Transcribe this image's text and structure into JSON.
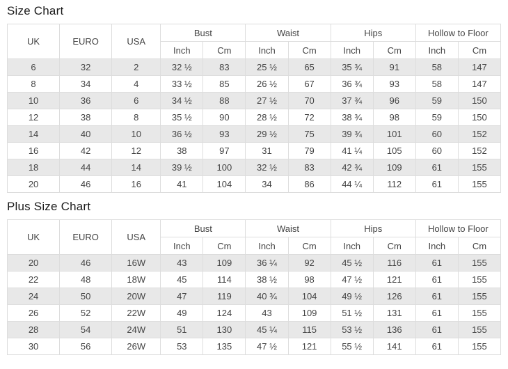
{
  "colors": {
    "row_stripe": "#e8e8e8",
    "cell_border": "#dddddd",
    "cell_text": "#444444",
    "title_text": "#1c1c1c",
    "background": "#ffffff"
  },
  "tables": [
    {
      "title": "Size Chart",
      "columns": [
        "UK",
        "EURO",
        "USA"
      ],
      "groups": [
        {
          "label": "Bust",
          "sub": [
            "Inch",
            "Cm"
          ]
        },
        {
          "label": "Waist",
          "sub": [
            "Inch",
            "Cm"
          ]
        },
        {
          "label": "Hips",
          "sub": [
            "Inch",
            "Cm"
          ]
        },
        {
          "label": "Hollow to Floor",
          "sub": [
            "Inch",
            "Cm"
          ]
        }
      ],
      "rows": [
        [
          "6",
          "32",
          "2",
          "32 ½",
          "83",
          "25 ½",
          "65",
          "35 ¾",
          "91",
          "58",
          "147"
        ],
        [
          "8",
          "34",
          "4",
          "33 ½",
          "85",
          "26 ½",
          "67",
          "36 ¾",
          "93",
          "58",
          "147"
        ],
        [
          "10",
          "36",
          "6",
          "34 ½",
          "88",
          "27 ½",
          "70",
          "37 ¾",
          "96",
          "59",
          "150"
        ],
        [
          "12",
          "38",
          "8",
          "35 ½",
          "90",
          "28 ½",
          "72",
          "38 ¾",
          "98",
          "59",
          "150"
        ],
        [
          "14",
          "40",
          "10",
          "36 ½",
          "93",
          "29 ½",
          "75",
          "39 ¾",
          "101",
          "60",
          "152"
        ],
        [
          "16",
          "42",
          "12",
          "38",
          "97",
          "31",
          "79",
          "41 ¼",
          "105",
          "60",
          "152"
        ],
        [
          "18",
          "44",
          "14",
          "39 ½",
          "100",
          "32 ½",
          "83",
          "42 ¾",
          "109",
          "61",
          "155"
        ],
        [
          "20",
          "46",
          "16",
          "41",
          "104",
          "34",
          "86",
          "44 ¼",
          "112",
          "61",
          "155"
        ]
      ]
    },
    {
      "title": "Plus Size Chart",
      "columns": [
        "UK",
        "EURO",
        "USA"
      ],
      "groups": [
        {
          "label": "Bust",
          "sub": [
            "Inch",
            "Cm"
          ]
        },
        {
          "label": "Waist",
          "sub": [
            "Inch",
            "Cm"
          ]
        },
        {
          "label": "Hips",
          "sub": [
            "Inch",
            "Cm"
          ]
        },
        {
          "label": "Hollow to Floor",
          "sub": [
            "Inch",
            "Cm"
          ]
        }
      ],
      "rows": [
        [
          "20",
          "46",
          "16W",
          "43",
          "109",
          "36 ¼",
          "92",
          "45 ½",
          "116",
          "61",
          "155"
        ],
        [
          "22",
          "48",
          "18W",
          "45",
          "114",
          "38 ½",
          "98",
          "47 ½",
          "121",
          "61",
          "155"
        ],
        [
          "24",
          "50",
          "20W",
          "47",
          "119",
          "40 ¾",
          "104",
          "49 ½",
          "126",
          "61",
          "155"
        ],
        [
          "26",
          "52",
          "22W",
          "49",
          "124",
          "43",
          "109",
          "51 ½",
          "131",
          "61",
          "155"
        ],
        [
          "28",
          "54",
          "24W",
          "51",
          "130",
          "45 ¼",
          "115",
          "53 ½",
          "136",
          "61",
          "155"
        ],
        [
          "30",
          "56",
          "26W",
          "53",
          "135",
          "47 ½",
          "121",
          "55 ½",
          "141",
          "61",
          "155"
        ]
      ]
    }
  ]
}
